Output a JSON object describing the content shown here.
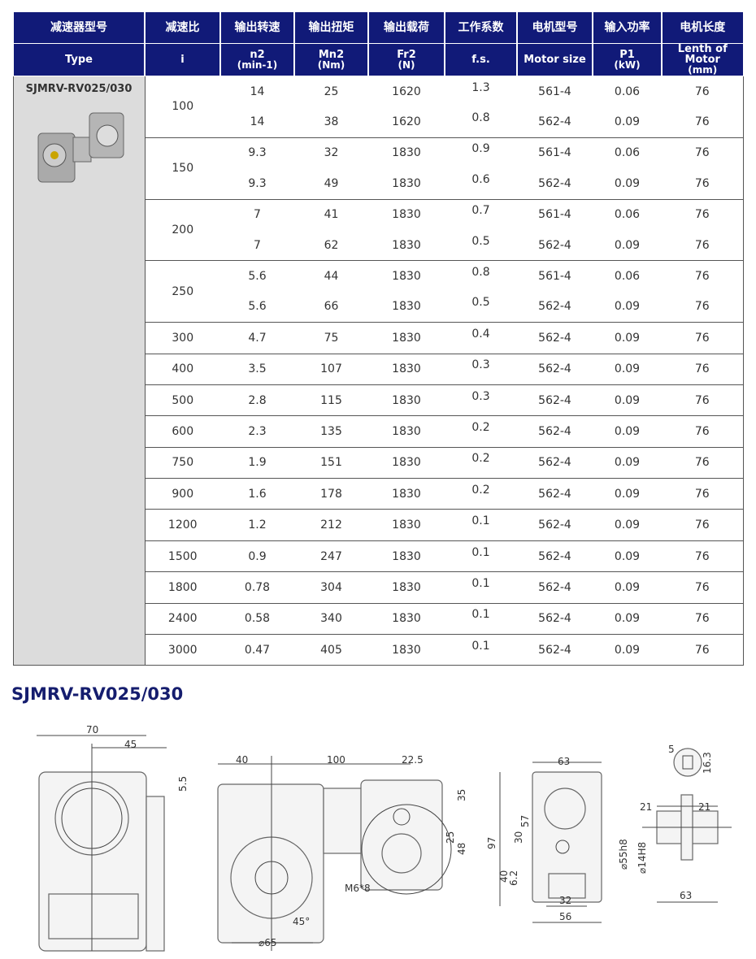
{
  "headers_cn": [
    "减速器型号",
    "减速比",
    "输出转速",
    "输出扭矩",
    "输出载荷",
    "工作系数",
    "电机型号",
    "输入功率",
    "电机长度"
  ],
  "headers_en": [
    [
      "Type",
      ""
    ],
    [
      "i",
      ""
    ],
    [
      "n2",
      "(min-1)"
    ],
    [
      "Mn2",
      "(Nm)"
    ],
    [
      "Fr2",
      "(N)"
    ],
    [
      "f.s.",
      ""
    ],
    [
      "Motor size",
      ""
    ],
    [
      "P1",
      "(kW)"
    ],
    [
      "Lenth of Motor",
      "(mm)"
    ]
  ],
  "type_name": "SJMRV-RV025/030",
  "rows": [
    {
      "i": "100",
      "subs": [
        [
          "14",
          "25",
          "1620",
          "1.3",
          "561-4",
          "0.06",
          "76"
        ],
        [
          "14",
          "38",
          "1620",
          "0.8",
          "562-4",
          "0.09",
          "76"
        ]
      ]
    },
    {
      "i": "150",
      "subs": [
        [
          "9.3",
          "32",
          "1830",
          "0.9",
          "561-4",
          "0.06",
          "76"
        ],
        [
          "9.3",
          "49",
          "1830",
          "0.6",
          "562-4",
          "0.09",
          "76"
        ]
      ]
    },
    {
      "i": "200",
      "subs": [
        [
          "7",
          "41",
          "1830",
          "0.7",
          "561-4",
          "0.06",
          "76"
        ],
        [
          "7",
          "62",
          "1830",
          "0.5",
          "562-4",
          "0.09",
          "76"
        ]
      ]
    },
    {
      "i": "250",
      "subs": [
        [
          "5.6",
          "44",
          "1830",
          "0.8",
          "561-4",
          "0.06",
          "76"
        ],
        [
          "5.6",
          "66",
          "1830",
          "0.5",
          "562-4",
          "0.09",
          "76"
        ]
      ]
    },
    {
      "i": "300",
      "subs": [
        [
          "4.7",
          "75",
          "1830",
          "0.4",
          "562-4",
          "0.09",
          "76"
        ]
      ]
    },
    {
      "i": "400",
      "subs": [
        [
          "3.5",
          "107",
          "1830",
          "0.3",
          "562-4",
          "0.09",
          "76"
        ]
      ]
    },
    {
      "i": "500",
      "subs": [
        [
          "2.8",
          "115",
          "1830",
          "0.3",
          "562-4",
          "0.09",
          "76"
        ]
      ]
    },
    {
      "i": "600",
      "subs": [
        [
          "2.3",
          "135",
          "1830",
          "0.2",
          "562-4",
          "0.09",
          "76"
        ]
      ]
    },
    {
      "i": "750",
      "subs": [
        [
          "1.9",
          "151",
          "1830",
          "0.2",
          "562-4",
          "0.09",
          "76"
        ]
      ]
    },
    {
      "i": "900",
      "subs": [
        [
          "1.6",
          "178",
          "1830",
          "0.2",
          "562-4",
          "0.09",
          "76"
        ]
      ]
    },
    {
      "i": "1200",
      "subs": [
        [
          "1.2",
          "212",
          "1830",
          "0.1",
          "562-4",
          "0.09",
          "76"
        ]
      ]
    },
    {
      "i": "1500",
      "subs": [
        [
          "0.9",
          "247",
          "1830",
          "0.1",
          "562-4",
          "0.09",
          "76"
        ]
      ]
    },
    {
      "i": "1800",
      "subs": [
        [
          "0.78",
          "304",
          "1830",
          "0.1",
          "562-4",
          "0.09",
          "76"
        ]
      ]
    },
    {
      "i": "2400",
      "subs": [
        [
          "0.58",
          "340",
          "1830",
          "0.1",
          "562-4",
          "0.09",
          "76"
        ]
      ]
    },
    {
      "i": "3000",
      "subs": [
        [
          "0.47",
          "405",
          "1830",
          "0.1",
          "562-4",
          "0.09",
          "76"
        ]
      ]
    }
  ],
  "drawing_title": "SJMRV-RV025/030",
  "dims": [
    "70",
    "45",
    "40",
    "100",
    "22.5",
    "5.5",
    "35",
    "25",
    "48",
    "M6*8",
    "45°",
    "⌀65",
    "63",
    "97",
    "57",
    "30",
    "40",
    "6.2",
    "⌀55h8",
    "32",
    "56",
    "5",
    "16.3",
    "21",
    "21",
    "⌀14H8",
    "63"
  ],
  "colors": {
    "header_bg": "#111a78",
    "type_bg": "#dcdcdc",
    "title": "#151d6e"
  }
}
